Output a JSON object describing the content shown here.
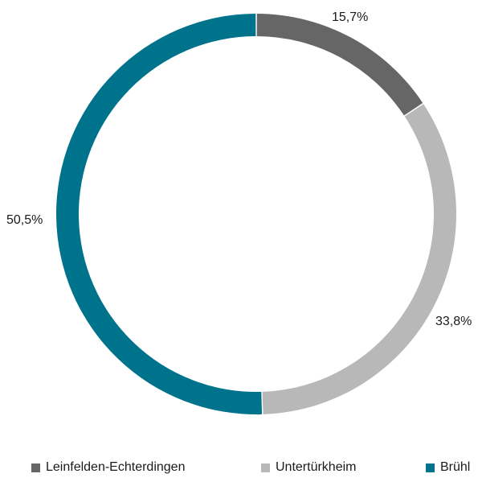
{
  "chart_data": {
    "type": "pie",
    "donut": true,
    "categories": [
      "Leinfelden-Echterdingen",
      "Untertürkheim",
      "Brühl"
    ],
    "values": [
      15.7,
      33.8,
      50.5
    ],
    "value_labels": [
      "15,7%",
      "33,8%",
      "50,5%"
    ],
    "colors": [
      "#666666",
      "#b8b8b8",
      "#00738c"
    ],
    "legend_placement": "bottom",
    "start_angle": "12 o'clock",
    "direction": "clockwise"
  },
  "legend": {
    "items": [
      {
        "label": "Leinfelden-Echterdingen",
        "color": "#666666"
      },
      {
        "label": "Untertürkheim",
        "color": "#b8b8b8"
      },
      {
        "label": "Brühl",
        "color": "#00738c"
      }
    ]
  }
}
